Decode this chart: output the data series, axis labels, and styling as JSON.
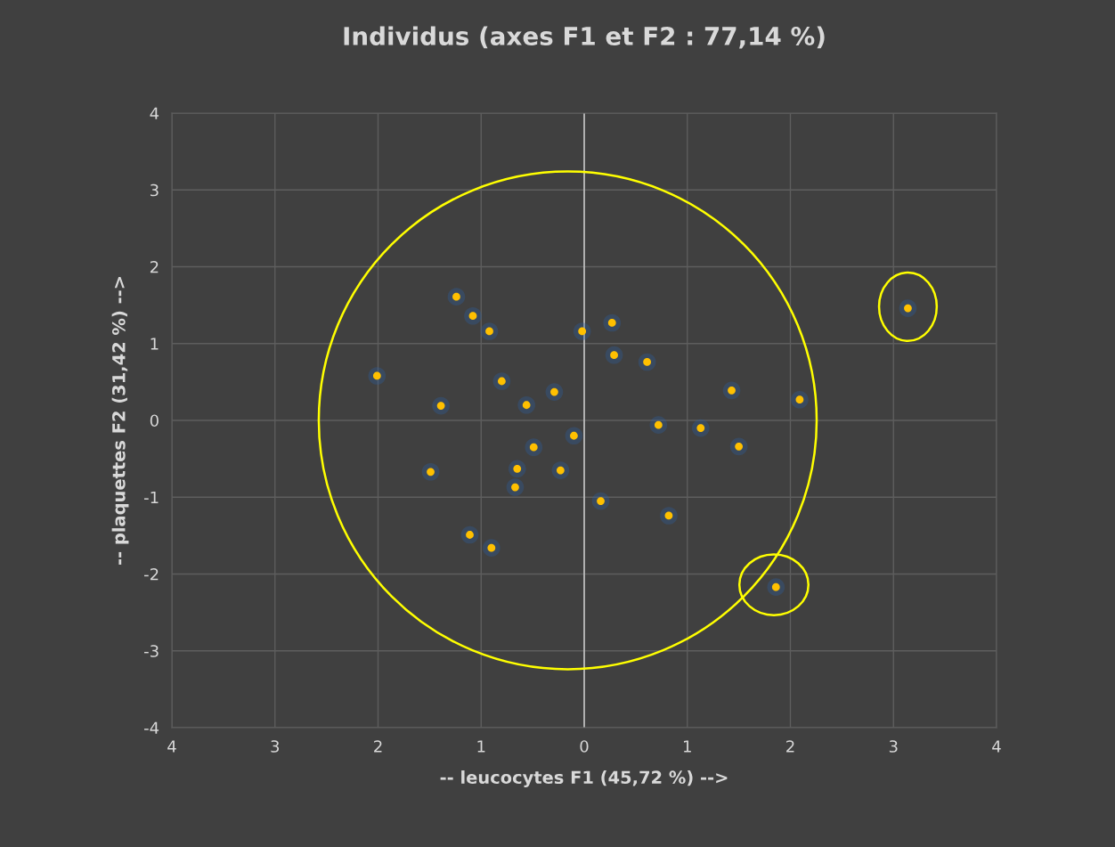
{
  "chart_data": {
    "type": "scatter",
    "title": "Individus (axes F1 et F2 : 77,14 %)",
    "xlabel": "-- leucocytes F1 (45,72 %) -->",
    "ylabel": "-- plaquettes F2 (31,42 %) -->",
    "x": [
      -1.24,
      -1.08,
      -0.92,
      -0.02,
      0.27,
      0.29,
      0.61,
      -2.01,
      -0.8,
      -0.29,
      -1.39,
      -0.56,
      1.43,
      2.09,
      0.72,
      1.13,
      1.5,
      -0.49,
      -0.1,
      -0.65,
      -0.23,
      -1.49,
      -0.67,
      0.16,
      0.82,
      -1.11,
      -0.9,
      1.86,
      3.14
    ],
    "values": [
      1.61,
      1.36,
      1.16,
      1.16,
      1.27,
      0.85,
      0.76,
      0.58,
      0.51,
      0.37,
      0.19,
      0.2,
      0.39,
      0.27,
      -0.06,
      -0.1,
      -0.34,
      -0.35,
      -0.2,
      -0.63,
      -0.65,
      -0.67,
      -0.87,
      -1.05,
      -1.24,
      -1.49,
      -1.66,
      -2.17,
      1.46
    ],
    "color": "#ffc000",
    "marker": "circle",
    "xlim": [
      -4,
      4
    ],
    "ylim": [
      -4,
      4
    ],
    "xticks": [
      {
        "value": -4,
        "label": "4"
      },
      {
        "value": -3,
        "label": "3"
      },
      {
        "value": -2,
        "label": "2"
      },
      {
        "value": -1,
        "label": "1"
      },
      0,
      1,
      2,
      3,
      4
    ],
    "yticks": [
      -4,
      -3,
      -2,
      -1,
      0,
      1,
      2,
      3,
      4
    ],
    "ref_lines": [
      {
        "axis": "x",
        "value": 0,
        "color": "#d9d9d9"
      }
    ],
    "grid": true
  }
}
